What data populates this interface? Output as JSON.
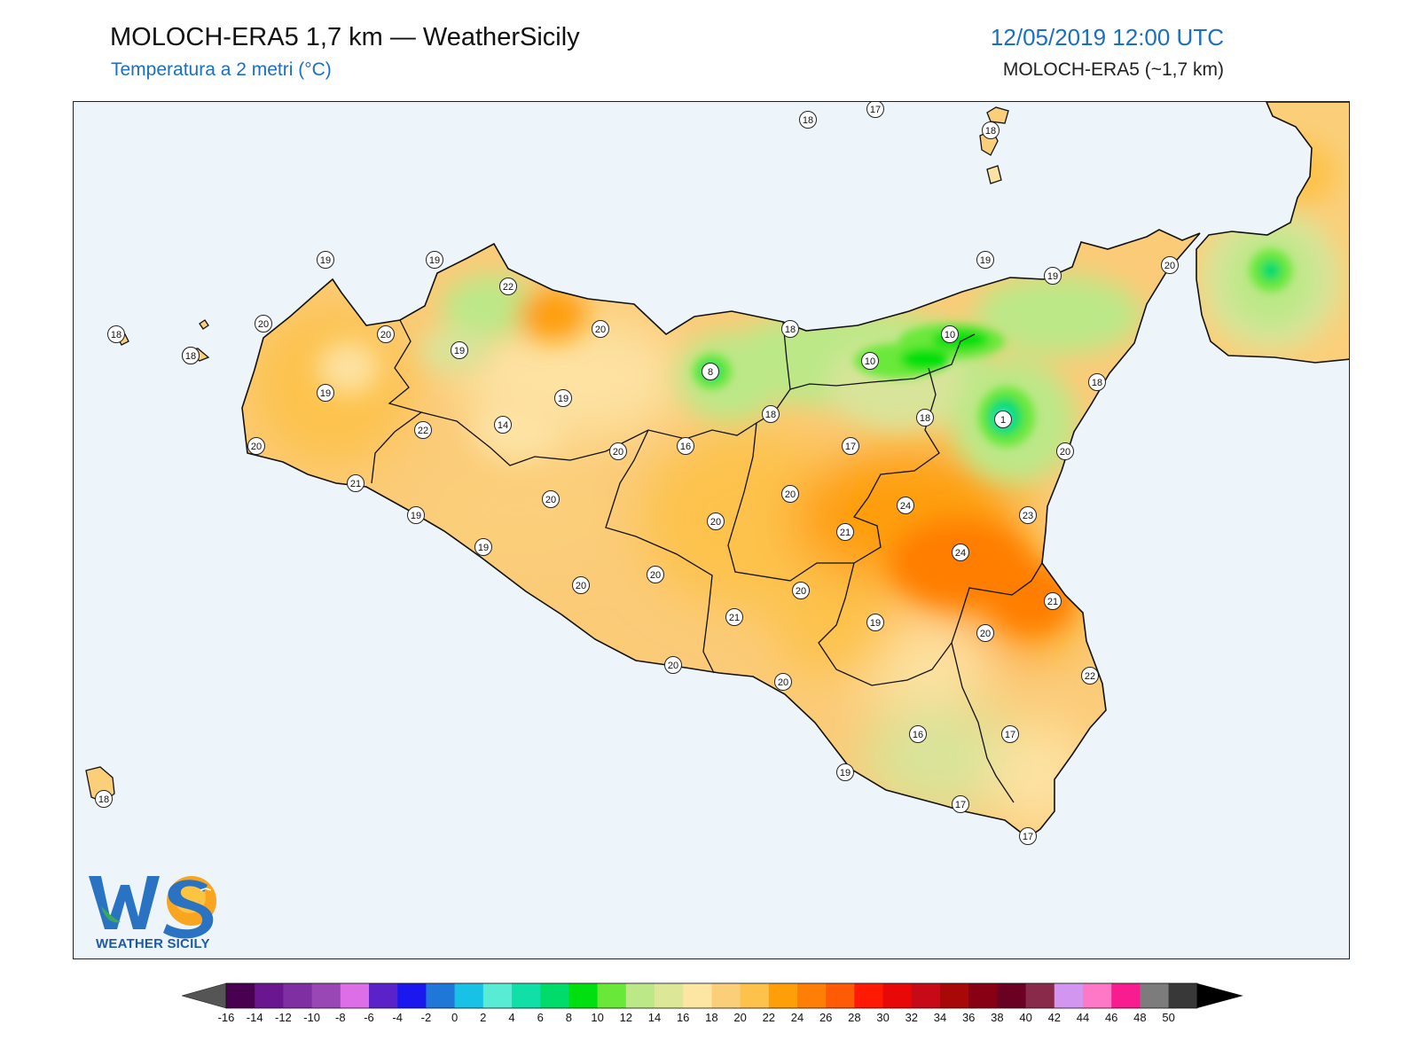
{
  "header": {
    "title": "MOLOCH-ERA5 1,7 km — WeatherSicily",
    "subtitle": "Temperatura a 2 metri (°C)",
    "datetime": "12/05/2019 12:00 UTC",
    "model": "MOLOCH-ERA5 (~1,7 km)"
  },
  "logo": {
    "letters": "WS",
    "text": "WEATHER SICILY"
  },
  "stations": [
    {
      "label": "18",
      "place": "ustica-north"
    },
    {
      "label": "17",
      "place": "alicudi-north"
    },
    {
      "label": "18",
      "place": "lipari"
    },
    {
      "label": "18",
      "place": "marettimo"
    },
    {
      "label": "19",
      "place": "levanzo"
    },
    {
      "label": "19",
      "place": "san-vito"
    },
    {
      "label": "19",
      "place": "capo-gallo"
    },
    {
      "label": "22",
      "place": "palermo"
    },
    {
      "label": "20",
      "place": "trapani"
    },
    {
      "label": "20",
      "place": "erice"
    },
    {
      "label": "19",
      "place": "partinico"
    },
    {
      "label": "20",
      "place": "termini"
    },
    {
      "label": "18",
      "place": "cefalu"
    },
    {
      "label": "19",
      "place": "capo-orlando"
    },
    {
      "label": "19",
      "place": "milazzo"
    },
    {
      "label": "20",
      "place": "messina"
    },
    {
      "label": "19",
      "place": "marsala-inland"
    },
    {
      "label": "19",
      "place": "corleone"
    },
    {
      "label": "8",
      "place": "madonie"
    },
    {
      "label": "10",
      "place": "nebrodi-west"
    },
    {
      "label": "10",
      "place": "nebrodi-east"
    },
    {
      "label": "18",
      "place": "taormina"
    },
    {
      "label": "1",
      "place": "etna"
    },
    {
      "label": "18",
      "place": "randazzo"
    },
    {
      "label": "18",
      "place": "petralia"
    },
    {
      "label": "22",
      "place": "alcamo"
    },
    {
      "label": "14",
      "place": "ficuzza"
    },
    {
      "label": "20",
      "place": "lercara"
    },
    {
      "label": "16",
      "place": "polizzi"
    },
    {
      "label": "17",
      "place": "troina"
    },
    {
      "label": "20",
      "place": "mazara"
    },
    {
      "label": "20",
      "place": "acireale"
    },
    {
      "label": "21",
      "place": "castelvetrano"
    },
    {
      "label": "19",
      "place": "selinunte"
    },
    {
      "label": "19",
      "place": "sciacca"
    },
    {
      "label": "20",
      "place": "bivona"
    },
    {
      "label": "20",
      "place": "caltanissetta"
    },
    {
      "label": "20",
      "place": "enna-west"
    },
    {
      "label": "24",
      "place": "catenanuova"
    },
    {
      "label": "21",
      "place": "piazza"
    },
    {
      "label": "23",
      "place": "catania"
    },
    {
      "label": "24",
      "place": "lentini"
    },
    {
      "label": "20",
      "place": "agrigento-inland"
    },
    {
      "label": "20",
      "place": "canicatti"
    },
    {
      "label": "20",
      "place": "caltagirone"
    },
    {
      "label": "21",
      "place": "gela-inland"
    },
    {
      "label": "21",
      "place": "augusta"
    },
    {
      "label": "19",
      "place": "vizzini"
    },
    {
      "label": "20",
      "place": "sortino"
    },
    {
      "label": "20",
      "place": "agrigento"
    },
    {
      "label": "20",
      "place": "gela"
    },
    {
      "label": "22",
      "place": "siracusa"
    },
    {
      "label": "16",
      "place": "ragusa"
    },
    {
      "label": "17",
      "place": "noto"
    },
    {
      "label": "19",
      "place": "scoglitti"
    },
    {
      "label": "17",
      "place": "pozzallo"
    },
    {
      "label": "17",
      "place": "pachino"
    },
    {
      "label": "18",
      "place": "pantelleria"
    },
    {
      "label": "18",
      "place": "favignana"
    }
  ],
  "colorbar": {
    "ticks": [
      "-16",
      "-14",
      "-12",
      "-10",
      "-8",
      "-6",
      "-4",
      "-2",
      "0",
      "2",
      "4",
      "6",
      "8",
      "10",
      "12",
      "14",
      "16",
      "18",
      "20",
      "22",
      "24",
      "26",
      "28",
      "30",
      "32",
      "34",
      "36",
      "38",
      "40",
      "42",
      "44",
      "46",
      "48",
      "50"
    ],
    "colors": [
      "#4a0050",
      "#6a1690",
      "#7f2fa2",
      "#9a47b6",
      "#dd6ee8",
      "#5a22c8",
      "#1a18ee",
      "#1f78d8",
      "#18c2e6",
      "#58ecd4",
      "#10e0a8",
      "#00dc6a",
      "#00e010",
      "#6ae83a",
      "#bce888",
      "#dce898",
      "#fde6a4",
      "#fbcf7a",
      "#fdc24c",
      "#fe9e08",
      "#ff7e06",
      "#ff5a06",
      "#ff1a06",
      "#e80808",
      "#c80a18",
      "#a80808",
      "#880014",
      "#6a0022",
      "#8a2a4a",
      "#d296f0",
      "#ff78c8",
      "#f81c90",
      "#7c7c7c",
      "#383838"
    ],
    "under_color": "#555555",
    "over_color": "#000000"
  }
}
